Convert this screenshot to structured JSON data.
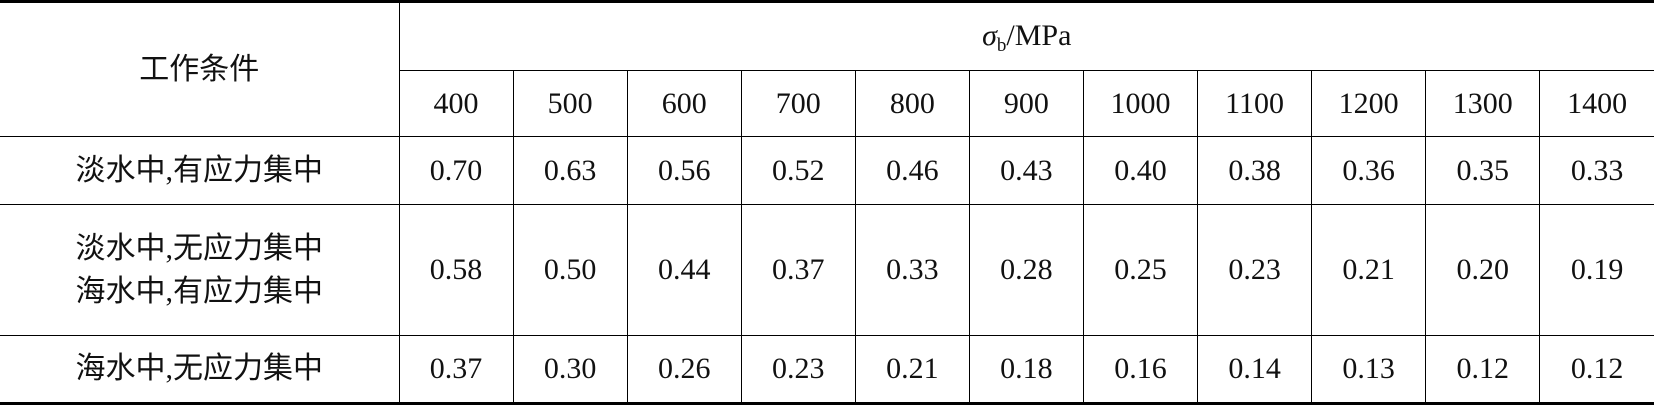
{
  "table": {
    "corner": "工作条件",
    "group_header": {
      "symbol": "σ",
      "subscript": "b",
      "unit": "/MPa"
    },
    "columns": [
      "400",
      "500",
      "600",
      "700",
      "800",
      "900",
      "1000",
      "1100",
      "1200",
      "1300",
      "1400"
    ],
    "rows": [
      {
        "label": [
          "淡水中,有应力集中"
        ],
        "values": [
          "0.70",
          "0.63",
          "0.56",
          "0.52",
          "0.46",
          "0.43",
          "0.40",
          "0.38",
          "0.36",
          "0.35",
          "0.33"
        ]
      },
      {
        "label": [
          "淡水中,无应力集中",
          "海水中,有应力集中"
        ],
        "values": [
          "0.58",
          "0.50",
          "0.44",
          "0.37",
          "0.33",
          "0.28",
          "0.25",
          "0.23",
          "0.21",
          "0.20",
          "0.19"
        ]
      },
      {
        "label": [
          "海水中,无应力集中"
        ],
        "values": [
          "0.37",
          "0.30",
          "0.26",
          "0.23",
          "0.21",
          "0.18",
          "0.16",
          "0.14",
          "0.13",
          "0.12",
          "0.12"
        ]
      }
    ]
  }
}
